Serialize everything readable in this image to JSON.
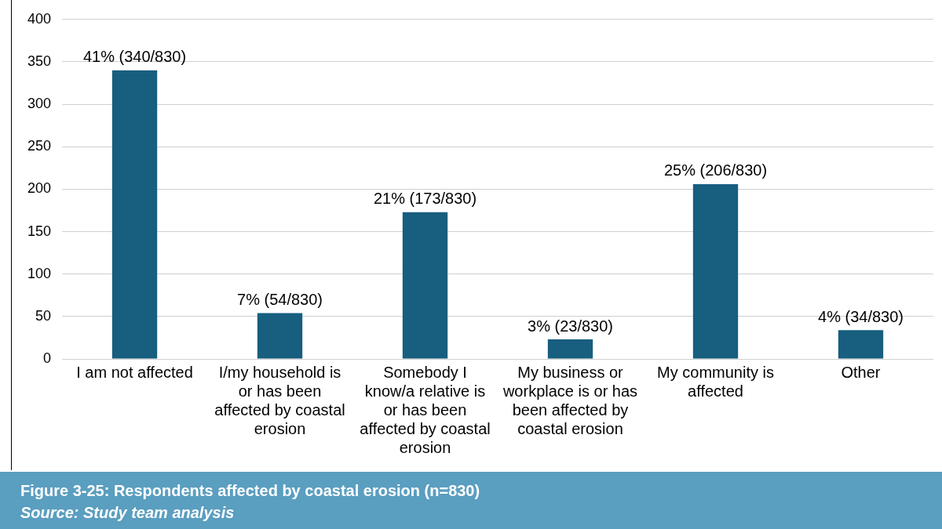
{
  "chart_data": {
    "type": "bar",
    "title": "Figure 3-25: Respondents affected by coastal erosion (n=830)",
    "annotations": [
      "Source: Study team analysis"
    ],
    "categories": [
      "I am not affected",
      "I/my household is or has been affected by coastal erosion",
      "Somebody I know/a relative is or has been affected by coastal erosion",
      "My business or workplace is or has been affected by coastal erosion",
      "My community is affected",
      "Other"
    ],
    "values": [
      340,
      54,
      173,
      23,
      206,
      34
    ],
    "value_labels": [
      "41% (340/830)",
      "7% (54/830)",
      "21% (173/830)",
      "3% (23/830)",
      "25% (206/830)",
      "4% (34/830)"
    ],
    "color": "#175e7f",
    "ylim": [
      0,
      400
    ],
    "yticks": [
      0,
      50,
      100,
      150,
      200,
      250,
      300,
      350,
      400
    ],
    "grid": "y",
    "legend": false
  }
}
